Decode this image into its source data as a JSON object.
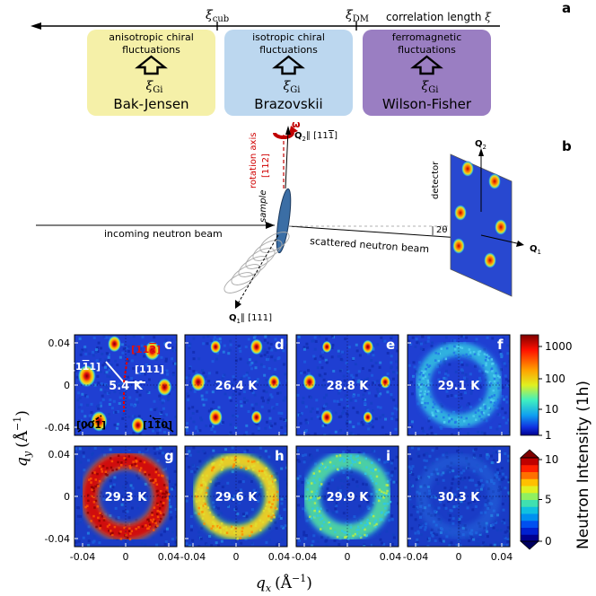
{
  "panel_a": {
    "letter": "a",
    "axis_label": "correlation length",
    "axis_symbol": "ξ",
    "marker_1": "ξ",
    "marker_1_sub": "cub",
    "marker_2": "ξ",
    "marker_2_sub": "DM",
    "regimes": [
      {
        "desc_1": "anisotropic chiral",
        "desc_2": "fluctuations",
        "xi": "ξ",
        "xi_sub": "Gi",
        "name": "Bak-Jensen",
        "color": "#f5f0a8"
      },
      {
        "desc_1": "isotropic chiral",
        "desc_2": "fluctuations",
        "xi": "ξ",
        "xi_sub": "Gi",
        "name": "Brazovskii",
        "color": "#bcd7ef"
      },
      {
        "desc_1": "ferromagnetic",
        "desc_2": "fluctuations",
        "xi": "ξ",
        "xi_sub": "Gi",
        "name": "Wilson-Fisher",
        "color": "#9a7ec2"
      }
    ]
  },
  "panel_b": {
    "letter": "b",
    "rotation_axis": "rotation axis",
    "rotation_dir": "[112]",
    "omega": "ω",
    "q2_label": "Q",
    "q2_sub": "2",
    "q2_dir": "∥ [11",
    "q2_dir_bar": "1",
    "q2_dir_end": "]",
    "q1_label": "Q",
    "q1_sub": "1",
    "q1_dir": "∥ [111]",
    "sample": "sample",
    "incoming": "incoming neutron beam",
    "scattered": "scattered neutron beam",
    "two_theta": "2θ",
    "detector": "detector",
    "det_q1": "Q",
    "det_q1_sub": "1",
    "det_q2": "Q",
    "det_q2_sub": "2"
  },
  "maps": {
    "x_ticks": [
      "-0.04",
      "0",
      "0.04"
    ],
    "y_ticks": [
      "0.04",
      "0",
      "-0.04"
    ],
    "xlabel": "q",
    "xlabel_sub": "x",
    "xlabel_unit": "(Å",
    "xlabel_exp": "−1",
    "xlabel_close": ")",
    "ylabel": "q",
    "ylabel_sub": "y",
    "ylabel_unit": "(Å",
    "ylabel_exp": "−1",
    "ylabel_close": ")",
    "panels": [
      {
        "letter": "c",
        "temp": "5.4 K",
        "type": "peaks",
        "row": 0
      },
      {
        "letter": "d",
        "temp": "26.4 K",
        "type": "peaks",
        "row": 0
      },
      {
        "letter": "e",
        "temp": "28.8 K",
        "type": "peaks",
        "row": 0
      },
      {
        "letter": "f",
        "temp": "29.1 K",
        "type": "ring",
        "row": 0
      },
      {
        "letter": "g",
        "temp": "29.3 K",
        "type": "ring",
        "row": 1
      },
      {
        "letter": "h",
        "temp": "29.6 K",
        "type": "ring",
        "row": 1
      },
      {
        "letter": "i",
        "temp": "29.9 K",
        "type": "ring",
        "row": 1
      },
      {
        "letter": "j",
        "temp": "30.3 K",
        "type": "noise",
        "row": 1
      }
    ],
    "c_annotations": {
      "d1": "[1",
      "d1_bar": "1",
      "d1_end": "1]",
      "d2": "[111]",
      "d3": "[11",
      "d3_bar": "2",
      "d3_end": "]",
      "d4": "[001]",
      "d5": "[1",
      "d5_bar": "1",
      "d5_end": "0]"
    }
  },
  "colorbars": {
    "title": "Neutron Intensity (1h)",
    "log_ticks": [
      "1000",
      "100",
      "10",
      "1"
    ],
    "lin_ticks": [
      "10",
      "5",
      "0"
    ]
  }
}
